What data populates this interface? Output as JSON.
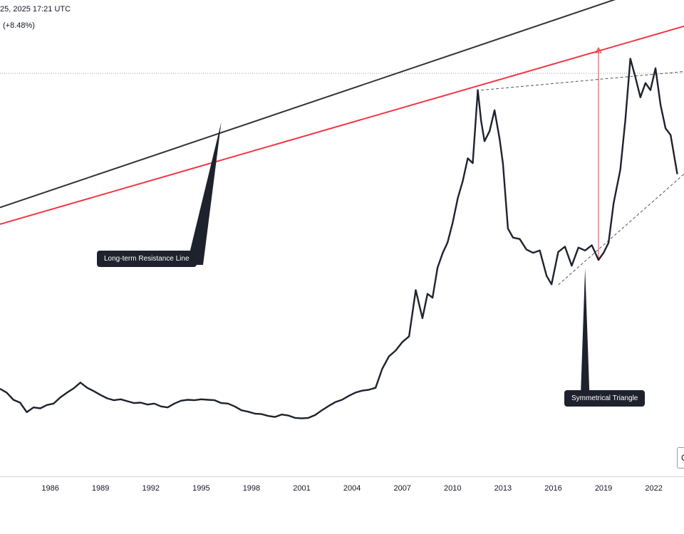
{
  "header": {
    "timestamp": "25, 2025 17:21 UTC",
    "change": "(+8.48%)"
  },
  "annotations": {
    "resistance": "Long-term Resistance Line",
    "triangle": "Symmetrical Triangle"
  },
  "logo": {
    "glyph": "C"
  },
  "colors": {
    "price": "#1e222d",
    "resistance": "#f23645",
    "upper_trend": "#333333",
    "triangle": "#555555",
    "arrow": "#f23645"
  },
  "chart_data": {
    "type": "line",
    "title": "",
    "xlabel": "",
    "ylabel": "",
    "xlim": [
      1983.0,
      2023.8
    ],
    "ylim": [
      0,
      100
    ],
    "x_tick_labels": [
      "1986",
      "1989",
      "1992",
      "1995",
      "1998",
      "2001",
      "2004",
      "2007",
      "2010",
      "2013",
      "2016",
      "2019",
      "2022"
    ],
    "x_ticks": [
      1986,
      1989,
      1992,
      1995,
      1998,
      2001,
      2004,
      2007,
      2010,
      2013,
      2016,
      2019,
      2022
    ],
    "series": [
      {
        "name": "price",
        "x": [
          1983.0,
          1983.4,
          1983.8,
          1984.2,
          1984.6,
          1985.0,
          1985.4,
          1985.8,
          1986.2,
          1986.6,
          1987.0,
          1987.4,
          1987.8,
          1988.2,
          1988.6,
          1989.0,
          1989.4,
          1989.8,
          1990.2,
          1990.6,
          1991.0,
          1991.4,
          1991.8,
          1992.2,
          1992.6,
          1993.0,
          1993.4,
          1993.8,
          1994.2,
          1994.6,
          1995.0,
          1995.4,
          1995.8,
          1996.2,
          1996.6,
          1997.0,
          1997.4,
          1997.8,
          1998.2,
          1998.6,
          1999.0,
          1999.4,
          1999.8,
          2000.2,
          2000.6,
          2001.0,
          2001.4,
          2001.8,
          2002.2,
          2002.6,
          2003.0,
          2003.4,
          2003.8,
          2004.2,
          2004.6,
          2005.0,
          2005.4,
          2005.8,
          2006.2,
          2006.6,
          2007.0,
          2007.4,
          2007.8,
          2008.2,
          2008.5,
          2008.8,
          2009.1,
          2009.4,
          2009.7,
          2010.0,
          2010.3,
          2010.6,
          2010.9,
          2011.2,
          2011.5,
          2011.7,
          2011.9,
          2012.2,
          2012.5,
          2012.8,
          2013.0,
          2013.3,
          2013.6,
          2014.0,
          2014.4,
          2014.8,
          2015.2,
          2015.6,
          2015.9,
          2016.3,
          2016.7,
          2017.1,
          2017.5,
          2017.9,
          2018.3,
          2018.7,
          2019.0,
          2019.3,
          2019.6,
          2020.0,
          2020.3,
          2020.6,
          2020.9,
          2021.2,
          2021.5,
          2021.8,
          2022.1,
          2022.4,
          2022.7,
          2023.0,
          2023.4
        ],
        "values": [
          18.5,
          17.7,
          16.2,
          15.6,
          13.6,
          14.6,
          14.4,
          15.1,
          15.4,
          16.7,
          17.7,
          18.6,
          19.8,
          18.7,
          18.0,
          17.2,
          16.5,
          16.1,
          16.3,
          15.9,
          15.5,
          15.6,
          15.2,
          15.4,
          14.8,
          14.6,
          15.4,
          16.0,
          16.2,
          16.1,
          16.3,
          16.2,
          16.1,
          15.5,
          15.4,
          14.8,
          14.0,
          13.7,
          13.3,
          13.2,
          12.8,
          12.6,
          13.1,
          12.9,
          12.4,
          12.3,
          12.4,
          13.0,
          14.0,
          14.9,
          15.7,
          16.2,
          17.0,
          17.7,
          18.1,
          18.3,
          18.7,
          22.7,
          25.3,
          26.5,
          28.3,
          29.5,
          39.2,
          33.3,
          38.4,
          37.6,
          43.9,
          46.9,
          49.2,
          53.3,
          58.4,
          62.0,
          66.8,
          65.8,
          81.1,
          74.6,
          70.4,
          72.5,
          76.9,
          70.9,
          65.7,
          52.1,
          50.2,
          49.9,
          47.7,
          47.0,
          47.5,
          42.2,
          40.4,
          47.2,
          48.3,
          44.3,
          48.1,
          47.5,
          48.6,
          45.5,
          47.0,
          49.1,
          57.4,
          64.4,
          74.7,
          87.7,
          83.8,
          79.6,
          82.6,
          81.1,
          85.7,
          78.0,
          73.1,
          71.7,
          63.5
        ]
      }
    ],
    "drawings": {
      "upper_trendline": [
        [
          1983.0,
          56.5
        ],
        [
          2023.8,
          105.0
        ]
      ],
      "long_term_resistance": [
        [
          1983.0,
          53.0
        ],
        [
          2023.8,
          94.5
        ]
      ],
      "triangle_upper": [
        [
          2011.7,
          81.1
        ],
        [
          2023.8,
          85.0
        ]
      ],
      "triangle_lower": [
        [
          2016.3,
          40.3
        ],
        [
          2023.8,
          63.5
        ]
      ],
      "target_arrow": [
        [
          2018.7,
          45.5
        ],
        [
          2018.7,
          90.0
        ]
      ],
      "resistance_callout_point": [
        1996.2,
        74.4
      ],
      "triangle_callout_point": [
        2017.9,
        43.8
      ]
    }
  }
}
